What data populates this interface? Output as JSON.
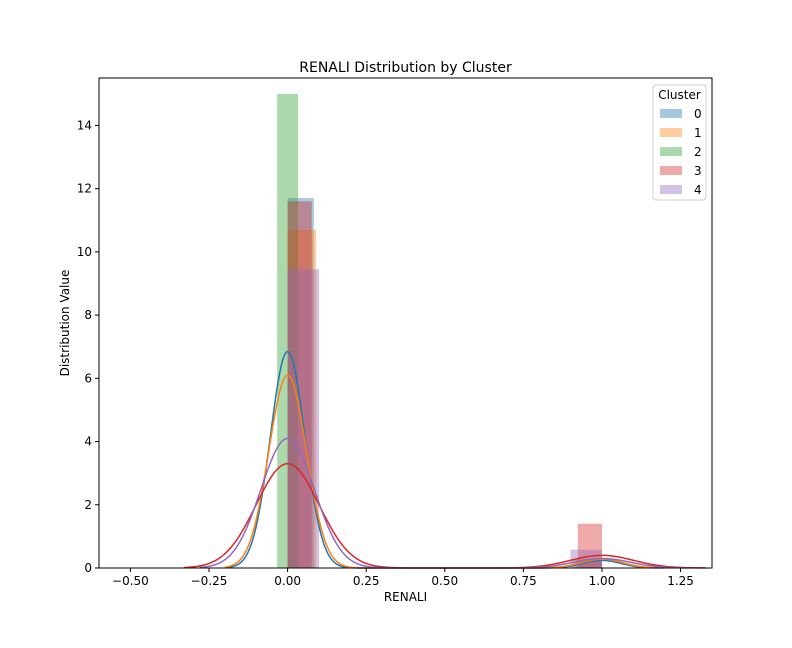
{
  "chart_data": {
    "type": "histogram+kde",
    "title": "RENALI Distribution by Cluster",
    "xlabel": "RENALI",
    "ylabel": "Distribution Value",
    "xlim": [
      -0.6,
      1.35
    ],
    "ylim": [
      0,
      15.5
    ],
    "xticks": [
      -0.5,
      -0.25,
      0.0,
      0.25,
      0.5,
      0.75,
      1.0,
      1.25
    ],
    "xtick_labels": [
      "−0.50",
      "−0.25",
      "0.00",
      "0.25",
      "0.50",
      "0.75",
      "1.00",
      "1.25"
    ],
    "yticks": [
      0,
      2,
      4,
      6,
      8,
      10,
      12,
      14
    ],
    "ytick_labels": [
      "0",
      "2",
      "4",
      "6",
      "8",
      "10",
      "12",
      "14"
    ],
    "grid": false,
    "legend": {
      "title": "Cluster",
      "placement": "top-right"
    },
    "series": [
      {
        "name": "0",
        "color": "#1f77b4",
        "bars": [
          {
            "x0": 0.0,
            "x1": 0.0833,
            "height": 11.7
          },
          {
            "x0": 0.9167,
            "x1": 1.0,
            "height": 0.25
          }
        ],
        "kde": {
          "peaks": [
            {
              "mu": 0.0,
              "sigma": 0.055,
              "peak": 6.85
            },
            {
              "mu": 1.0,
              "sigma": 0.06,
              "peak": 0.24
            }
          ],
          "range": [
            -0.19,
            1.19
          ]
        }
      },
      {
        "name": "1",
        "color": "#ff7f0e",
        "bars": [
          {
            "x0": 0.0,
            "x1": 0.0909,
            "height": 10.7
          },
          {
            "x0": 0.9091,
            "x1": 1.0,
            "height": 0.3
          }
        ],
        "kde": {
          "peaks": [
            {
              "mu": 0.0,
              "sigma": 0.06,
              "peak": 6.1
            },
            {
              "mu": 1.0,
              "sigma": 0.065,
              "peak": 0.28
            }
          ],
          "range": [
            -0.2,
            1.2
          ]
        }
      },
      {
        "name": "2",
        "color": "#2ca02c",
        "bars": [
          {
            "x0": -0.0333,
            "x1": 0.0333,
            "height": 15.0
          }
        ],
        "kde": null
      },
      {
        "name": "3",
        "color": "#d62728",
        "bars": [
          {
            "x0": 0.0,
            "x1": 0.0769,
            "height": 11.6
          },
          {
            "x0": 0.9231,
            "x1": 1.0,
            "height": 1.4
          }
        ],
        "kde": {
          "peaks": [
            {
              "mu": 0.0,
              "sigma": 0.1,
              "peak": 3.3
            },
            {
              "mu": 1.0,
              "sigma": 0.1,
              "peak": 0.4
            }
          ],
          "range": [
            -0.33,
            1.33
          ]
        }
      },
      {
        "name": "4",
        "color": "#9467bd",
        "bars": [
          {
            "x0": 0.0,
            "x1": 0.1,
            "height": 9.45
          },
          {
            "x0": 0.9,
            "x1": 1.0,
            "height": 0.58
          }
        ],
        "kde": {
          "peaks": [
            {
              "mu": 0.0,
              "sigma": 0.085,
              "peak": 4.1
            },
            {
              "mu": 1.0,
              "sigma": 0.09,
              "peak": 0.3
            }
          ],
          "range": [
            -0.28,
            1.28
          ]
        }
      }
    ]
  }
}
